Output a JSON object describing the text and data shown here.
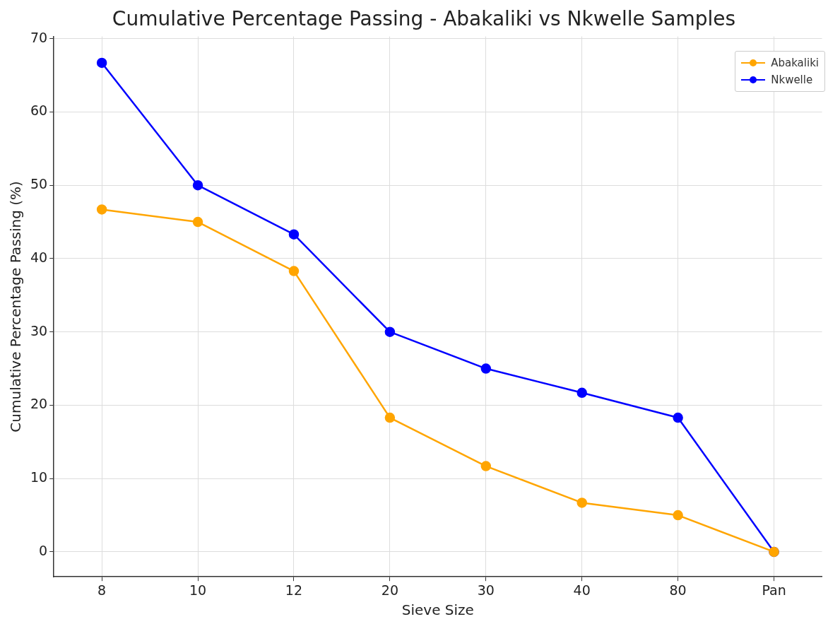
{
  "chart_data": {
    "type": "line",
    "title": "Cumulative Percentage Passing - Abakaliki vs Nkwelle Samples",
    "xlabel": "Sieve Size",
    "ylabel": "Cumulative Percentage Passing (%)",
    "categories": [
      "8",
      "10",
      "12",
      "20",
      "30",
      "40",
      "80",
      "Pan"
    ],
    "series": [
      {
        "name": "Abakaliki",
        "color": "#ffa500",
        "values": [
          46.7,
          45,
          38.3,
          18.3,
          11.7,
          6.7,
          5,
          0
        ]
      },
      {
        "name": "Nkwelle",
        "color": "#0000ff",
        "values": [
          66.7,
          50,
          43.3,
          30,
          25,
          21.7,
          18.3,
          0
        ]
      }
    ],
    "ylim": [
      -3.4,
      70.3
    ],
    "yticks": [
      0,
      10,
      20,
      30,
      40,
      50,
      60,
      70
    ],
    "grid": true,
    "legend": "top right",
    "marker": "circle",
    "line_style": "solid"
  }
}
